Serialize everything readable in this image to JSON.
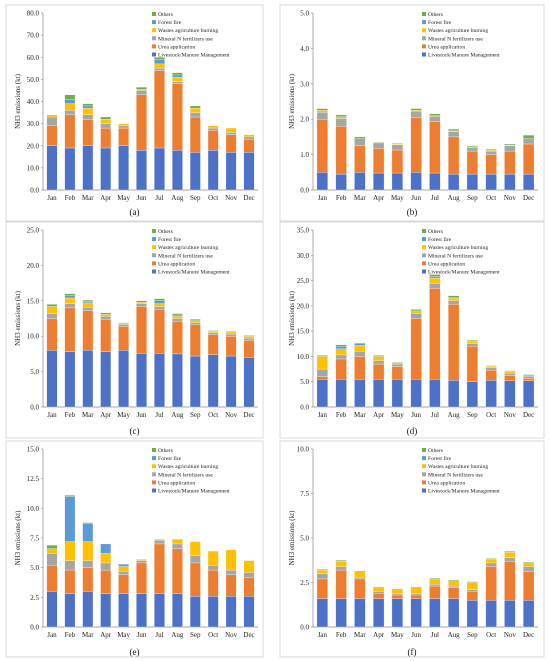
{
  "categories": [
    "Jan",
    "Feb",
    "Mar",
    "Apr",
    "May",
    "Jun",
    "Jul",
    "Aug",
    "Sep",
    "Oct",
    "Nov",
    "Dec"
  ],
  "legend": [
    "Others",
    "Forest fire",
    "Wastes agriculture burning",
    "Mineral N fertilizers use",
    "Urea application",
    "Livestock/Manure Management"
  ],
  "colors": {
    "Livestock/Manure Management": "#4e71c8",
    "Urea application": "#ed7d31",
    "Mineral N fertilizers use": "#a5a5a5",
    "Wastes agriculture burning": "#ffc000",
    "Forest fire": "#5b9bd5",
    "Others": "#70ad47"
  },
  "chart_data": [
    {
      "type": "bar",
      "stacked": true,
      "caption": "(a)",
      "ylabel": "NH3 emissions (kt)",
      "ylim": [
        0,
        80
      ],
      "yticks": [
        0,
        10,
        20,
        30,
        40,
        50,
        60,
        70,
        80
      ],
      "decimals": 1,
      "series": [
        {
          "name": "Livestock/Manure Management",
          "values": [
            20,
            19,
            20,
            19,
            20,
            18,
            19,
            18,
            17,
            18,
            17,
            17
          ]
        },
        {
          "name": "Urea application",
          "values": [
            9,
            15,
            12,
            9,
            8,
            25,
            35,
            30,
            16,
            9,
            8,
            6
          ]
        },
        {
          "name": "Mineral N fertilizers use",
          "values": [
            4,
            2,
            2,
            2,
            1,
            2,
            1,
            1,
            2,
            1,
            1,
            1
          ]
        },
        {
          "name": "Wastes agriculture burning",
          "values": [
            1,
            3,
            3,
            2,
            1,
            0.5,
            2,
            2,
            2,
            1,
            2,
            1
          ]
        },
        {
          "name": "Forest fire",
          "values": [
            0,
            2,
            1,
            0,
            0,
            0,
            2,
            1,
            0,
            0,
            0,
            0
          ]
        },
        {
          "name": "Others",
          "values": [
            0,
            2,
            1,
            1,
            0,
            1,
            1,
            1,
            1,
            0,
            0,
            0
          ]
        }
      ]
    },
    {
      "type": "bar",
      "stacked": true,
      "caption": "(b)",
      "ylabel": "NH3 emissions (kt)",
      "ylim": [
        0,
        5
      ],
      "yticks": [
        0,
        1,
        2,
        3,
        4,
        5
      ],
      "decimals": 1,
      "series": [
        {
          "name": "Livestock/Manure Management",
          "values": [
            0.5,
            0.45,
            0.5,
            0.48,
            0.48,
            0.5,
            0.48,
            0.45,
            0.45,
            0.45,
            0.45,
            0.45
          ]
        },
        {
          "name": "Urea application",
          "values": [
            1.5,
            1.35,
            0.75,
            0.7,
            0.65,
            1.55,
            1.45,
            1.05,
            0.65,
            0.55,
            0.65,
            0.85
          ]
        },
        {
          "name": "Mineral N fertilizers use",
          "values": [
            0.2,
            0.22,
            0.2,
            0.15,
            0.15,
            0.18,
            0.15,
            0.15,
            0.1,
            0.1,
            0.15,
            0.15
          ]
        },
        {
          "name": "Wastes agriculture burning",
          "values": [
            0.05,
            0.05,
            0,
            0,
            0.02,
            0.02,
            0.02,
            0.02,
            0.02,
            0.02,
            0.02,
            0
          ]
        },
        {
          "name": "Forest fire",
          "values": [
            0,
            0,
            0,
            0,
            0,
            0,
            0,
            0,
            0,
            0,
            0,
            0
          ]
        },
        {
          "name": "Others",
          "values": [
            0.05,
            0.05,
            0.05,
            0.02,
            0.02,
            0.05,
            0.05,
            0.05,
            0.03,
            0.03,
            0.03,
            0.1
          ]
        }
      ]
    },
    {
      "type": "bar",
      "stacked": true,
      "caption": "(c)",
      "ylabel": "NH3 emissions (kt)",
      "ylim": [
        0,
        25
      ],
      "yticks": [
        0,
        5,
        10,
        15,
        20,
        25
      ],
      "decimals": 1,
      "series": [
        {
          "name": "Livestock/Manure Management",
          "values": [
            8,
            7.8,
            8,
            7.8,
            8,
            7.6,
            7.6,
            7.5,
            7.2,
            7.4,
            7.2,
            7
          ]
        },
        {
          "name": "Urea application",
          "values": [
            4.5,
            6.2,
            5.6,
            4.6,
            3.4,
            6.6,
            6.2,
            4.6,
            4.4,
            2.8,
            2.8,
            2.4
          ]
        },
        {
          "name": "Mineral N fertilizers use",
          "values": [
            0.7,
            0.6,
            0.5,
            0.4,
            0.3,
            0.4,
            0.4,
            0.4,
            0.3,
            0.3,
            0.3,
            0.3
          ]
        },
        {
          "name": "Wastes agriculture burning",
          "values": [
            1,
            0.8,
            0.6,
            0.3,
            0.1,
            0.2,
            0.4,
            0.3,
            0.3,
            0.2,
            0.3,
            0.3
          ]
        },
        {
          "name": "Forest fire",
          "values": [
            0,
            0.3,
            0.2,
            0,
            0,
            0,
            0.4,
            0.2,
            0,
            0,
            0,
            0
          ]
        },
        {
          "name": "Others",
          "values": [
            0.3,
            0.3,
            0.2,
            0.2,
            0.1,
            0.2,
            0.3,
            0.2,
            0.2,
            0.1,
            0.1,
            0.1
          ]
        }
      ]
    },
    {
      "type": "bar",
      "stacked": true,
      "caption": "(d)",
      "ylabel": "NH3 emissions (kt)",
      "ylim": [
        0,
        35
      ],
      "yticks": [
        0,
        5,
        10,
        15,
        20,
        25,
        30,
        35
      ],
      "decimals": 1,
      "series": [
        {
          "name": "Livestock/Manure Management",
          "values": [
            5.5,
            5.5,
            5.5,
            5.5,
            5.5,
            5.5,
            5.5,
            5.3,
            5,
            5.3,
            5.2,
            5.2
          ]
        },
        {
          "name": "Urea application",
          "values": [
            0.5,
            4,
            4.5,
            3,
            2.5,
            12,
            18,
            15,
            7,
            2,
            1,
            0.5
          ]
        },
        {
          "name": "Mineral N fertilizers use",
          "values": [
            1.5,
            0.8,
            1,
            0.7,
            0.5,
            1,
            1,
            0.7,
            0.5,
            0.5,
            0.5,
            0.4
          ]
        },
        {
          "name": "Wastes agriculture burning",
          "values": [
            2.5,
            1.2,
            1.2,
            0.8,
            0.3,
            0.5,
            1,
            0.5,
            0.5,
            0.3,
            0.4,
            0.3
          ]
        },
        {
          "name": "Forest fire",
          "values": [
            0,
            0.5,
            0.3,
            0,
            0,
            0,
            0.3,
            0.2,
            0,
            0,
            0,
            0
          ]
        },
        {
          "name": "Others",
          "values": [
            0.2,
            0.3,
            0.2,
            0.2,
            0.1,
            0.3,
            0.4,
            0.3,
            0.2,
            0.1,
            0.1,
            0.1
          ]
        }
      ]
    },
    {
      "type": "bar",
      "stacked": true,
      "caption": "(e)",
      "ylabel": "NH3 emissions (kt)",
      "ylim": [
        0,
        15
      ],
      "yticks": [
        0,
        2.5,
        5,
        7.5,
        10,
        12.5,
        15
      ],
      "decimals": 1,
      "series": [
        {
          "name": "Livestock/Manure Management",
          "values": [
            3,
            2.8,
            3,
            2.8,
            2.8,
            2.8,
            2.8,
            2.8,
            2.6,
            2.6,
            2.6,
            2.6
          ]
        },
        {
          "name": "Urea application",
          "values": [
            2.2,
            2,
            2,
            2,
            1.6,
            2.6,
            4.2,
            3.8,
            2.8,
            2.2,
            1.8,
            1.6
          ]
        },
        {
          "name": "Mineral N fertilizers use",
          "values": [
            1,
            0.8,
            0.6,
            0.6,
            0.3,
            0.2,
            0.3,
            0.4,
            0.6,
            0.4,
            0.4,
            0.4
          ]
        },
        {
          "name": "Wastes agriculture burning",
          "values": [
            0.4,
            1.6,
            1.6,
            0.8,
            0.4,
            0.1,
            0.1,
            0.4,
            1.2,
            1.2,
            1.7,
            1
          ]
        },
        {
          "name": "Forest fire",
          "values": [
            0,
            3.8,
            1.5,
            0.8,
            0.2,
            0,
            0,
            0,
            0,
            0,
            0,
            0
          ]
        },
        {
          "name": "Others",
          "values": [
            0.3,
            0.1,
            0.1,
            0,
            0,
            0,
            0,
            0,
            0,
            0,
            0,
            0
          ]
        }
      ]
    },
    {
      "type": "bar",
      "stacked": true,
      "caption": "(f)",
      "ylabel": "NH3 emissions (kt)",
      "ylim": [
        0,
        10
      ],
      "yticks": [
        0,
        2.5,
        5,
        7.5,
        10
      ],
      "decimals": 1,
      "series": [
        {
          "name": "Livestock/Manure Management",
          "values": [
            1.6,
            1.6,
            1.6,
            1.6,
            1.6,
            1.6,
            1.6,
            1.6,
            1.5,
            1.5,
            1.5,
            1.5
          ]
        },
        {
          "name": "Urea application",
          "values": [
            1.1,
            1.6,
            1.1,
            0.3,
            0.2,
            0.2,
            0.7,
            0.6,
            0.5,
            1.9,
            2.2,
            1.6
          ]
        },
        {
          "name": "Mineral N fertilizers use",
          "values": [
            0.3,
            0.2,
            0.1,
            0.1,
            0.1,
            0.1,
            0.1,
            0.1,
            0.1,
            0.2,
            0.2,
            0.3
          ]
        },
        {
          "name": "Wastes agriculture burning",
          "values": [
            0.2,
            0.3,
            0.3,
            0.2,
            0.2,
            0.3,
            0.3,
            0.3,
            0.4,
            0.2,
            0.3,
            0.2
          ]
        },
        {
          "name": "Forest fire",
          "values": [
            0,
            0,
            0,
            0,
            0,
            0,
            0,
            0,
            0,
            0,
            0,
            0
          ]
        },
        {
          "name": "Others",
          "values": [
            0.05,
            0.05,
            0.05,
            0.05,
            0.05,
            0.05,
            0.05,
            0.05,
            0.05,
            0.05,
            0.05,
            0.05
          ]
        }
      ]
    }
  ]
}
